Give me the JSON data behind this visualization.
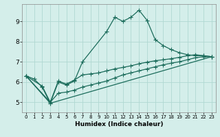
{
  "xlabel": "Humidex (Indice chaleur)",
  "xlim": [
    -0.5,
    23.5
  ],
  "ylim": [
    4.5,
    9.85
  ],
  "xticks": [
    0,
    1,
    2,
    3,
    4,
    5,
    6,
    7,
    8,
    9,
    10,
    11,
    12,
    13,
    14,
    15,
    16,
    17,
    18,
    19,
    20,
    21,
    22,
    23
  ],
  "yticks": [
    5,
    6,
    7,
    8,
    9
  ],
  "background_color": "#d4eeea",
  "grid_color": "#b0d8d2",
  "line_color": "#1a6b5a",
  "line1_x": [
    0,
    1,
    2,
    3,
    4,
    5,
    6,
    7,
    10,
    11,
    12,
    13,
    14,
    15,
    16,
    17,
    18,
    19,
    20,
    21,
    22,
    23
  ],
  "line1_y": [
    6.3,
    6.15,
    5.75,
    4.95,
    6.0,
    5.85,
    6.05,
    7.0,
    8.5,
    9.2,
    9.0,
    9.2,
    9.55,
    9.05,
    8.1,
    7.8,
    7.6,
    7.45,
    7.35,
    7.3,
    7.3,
    7.25
  ],
  "line2_x": [
    0,
    2,
    3,
    4,
    5,
    6,
    7,
    8,
    9,
    10,
    11,
    12,
    13,
    14,
    15,
    16,
    17,
    18,
    19,
    20,
    21,
    22,
    23
  ],
  "line2_y": [
    6.3,
    5.8,
    5.0,
    6.05,
    5.9,
    6.1,
    6.35,
    6.4,
    6.45,
    6.55,
    6.65,
    6.72,
    6.8,
    6.9,
    6.98,
    7.05,
    7.1,
    7.15,
    7.22,
    7.3,
    7.35,
    7.3,
    7.25
  ],
  "line3_x": [
    0,
    3,
    4,
    5,
    6,
    7,
    8,
    9,
    10,
    11,
    12,
    13,
    14,
    15,
    16,
    17,
    18,
    19,
    20,
    21,
    22,
    23
  ],
  "line3_y": [
    6.3,
    5.0,
    5.45,
    5.5,
    5.6,
    5.75,
    5.85,
    5.95,
    6.05,
    6.2,
    6.35,
    6.45,
    6.55,
    6.65,
    6.75,
    6.85,
    6.93,
    7.0,
    7.1,
    7.2,
    7.25,
    7.25
  ],
  "line4_x": [
    0,
    3,
    23
  ],
  "line4_y": [
    6.3,
    4.95,
    7.25
  ]
}
